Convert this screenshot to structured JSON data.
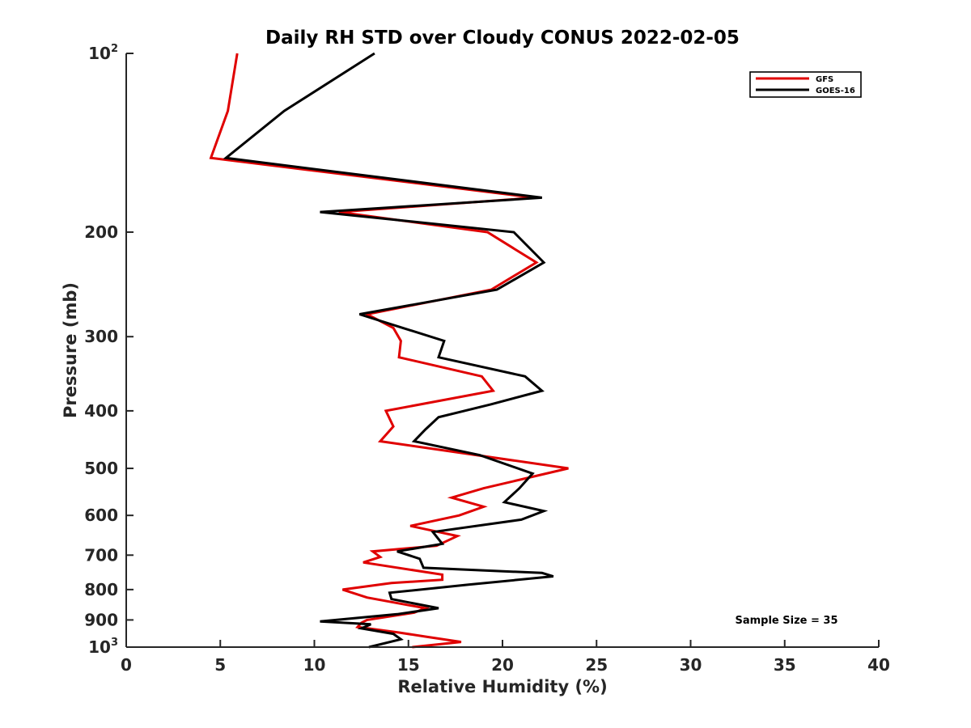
{
  "chart_data": {
    "type": "line",
    "title": "Daily RH STD over Cloudy CONUS 2022-02-05",
    "xlabel": "Relative Humidity (%)",
    "ylabel": "Pressure (mb)",
    "xlim": [
      0,
      40
    ],
    "ylim": [
      100,
      1000
    ],
    "yscale": "log",
    "y_reversed": true,
    "x_ticks": [
      "0",
      "5",
      "10",
      "15",
      "20",
      "25",
      "30",
      "35",
      "40"
    ],
    "y_ticks": [
      {
        "value": 100,
        "base": "10",
        "exp": "2"
      },
      {
        "value": 200,
        "label": "200"
      },
      {
        "value": 300,
        "label": "300"
      },
      {
        "value": 400,
        "label": "400"
      },
      {
        "value": 500,
        "label": "500"
      },
      {
        "value": 600,
        "label": "600"
      },
      {
        "value": 700,
        "label": "700"
      },
      {
        "value": 800,
        "label": "800"
      },
      {
        "value": 900,
        "label": "900"
      },
      {
        "value": 1000,
        "base": "10",
        "exp": "3"
      }
    ],
    "grid": false,
    "legend_position": "top-right",
    "annotation": "Sample Size = 35",
    "series": [
      {
        "name": "GFS",
        "color": "#e00000",
        "points": [
          {
            "x": 5.9,
            "y": 100
          },
          {
            "x": 5.4,
            "y": 125
          },
          {
            "x": 4.5,
            "y": 150
          },
          {
            "x": 21.7,
            "y": 175
          },
          {
            "x": 11.3,
            "y": 185
          },
          {
            "x": 19.2,
            "y": 200
          },
          {
            "x": 21.8,
            "y": 225
          },
          {
            "x": 19.4,
            "y": 250
          },
          {
            "x": 12.8,
            "y": 275
          },
          {
            "x": 14.2,
            "y": 290
          },
          {
            "x": 14.6,
            "y": 305
          },
          {
            "x": 14.5,
            "y": 325
          },
          {
            "x": 18.9,
            "y": 350
          },
          {
            "x": 19.5,
            "y": 370
          },
          {
            "x": 13.8,
            "y": 400
          },
          {
            "x": 14.2,
            "y": 425
          },
          {
            "x": 13.5,
            "y": 450
          },
          {
            "x": 23.5,
            "y": 500
          },
          {
            "x": 19.0,
            "y": 540
          },
          {
            "x": 17.3,
            "y": 560
          },
          {
            "x": 19.0,
            "y": 580
          },
          {
            "x": 17.7,
            "y": 600
          },
          {
            "x": 15.1,
            "y": 625
          },
          {
            "x": 17.6,
            "y": 650
          },
          {
            "x": 16.5,
            "y": 675
          },
          {
            "x": 13.1,
            "y": 690
          },
          {
            "x": 13.5,
            "y": 705
          },
          {
            "x": 12.6,
            "y": 720
          },
          {
            "x": 16.8,
            "y": 755
          },
          {
            "x": 16.8,
            "y": 770
          },
          {
            "x": 14.1,
            "y": 780
          },
          {
            "x": 11.5,
            "y": 800
          },
          {
            "x": 12.8,
            "y": 825
          },
          {
            "x": 15.9,
            "y": 860
          },
          {
            "x": 15.3,
            "y": 875
          },
          {
            "x": 12.8,
            "y": 900
          },
          {
            "x": 12.5,
            "y": 910
          },
          {
            "x": 12.3,
            "y": 925
          },
          {
            "x": 14.5,
            "y": 945
          },
          {
            "x": 15.9,
            "y": 960
          },
          {
            "x": 17.8,
            "y": 980
          },
          {
            "x": 15.2,
            "y": 1000
          }
        ]
      },
      {
        "name": "GOES-16",
        "color": "#000000",
        "points": [
          {
            "x": 13.2,
            "y": 100
          },
          {
            "x": 8.4,
            "y": 125
          },
          {
            "x": 5.3,
            "y": 150
          },
          {
            "x": 22.1,
            "y": 175
          },
          {
            "x": 10.3,
            "y": 185
          },
          {
            "x": 20.6,
            "y": 200
          },
          {
            "x": 22.2,
            "y": 225
          },
          {
            "x": 19.7,
            "y": 250
          },
          {
            "x": 12.4,
            "y": 275
          },
          {
            "x": 14.7,
            "y": 290
          },
          {
            "x": 16.9,
            "y": 305
          },
          {
            "x": 16.6,
            "y": 325
          },
          {
            "x": 21.2,
            "y": 350
          },
          {
            "x": 22.1,
            "y": 370
          },
          {
            "x": 19.4,
            "y": 390
          },
          {
            "x": 16.6,
            "y": 410
          },
          {
            "x": 15.9,
            "y": 430
          },
          {
            "x": 15.3,
            "y": 450
          },
          {
            "x": 18.8,
            "y": 475
          },
          {
            "x": 21.6,
            "y": 510
          },
          {
            "x": 20.9,
            "y": 540
          },
          {
            "x": 20.1,
            "y": 570
          },
          {
            "x": 22.2,
            "y": 590
          },
          {
            "x": 21.0,
            "y": 610
          },
          {
            "x": 16.3,
            "y": 640
          },
          {
            "x": 16.8,
            "y": 670
          },
          {
            "x": 14.4,
            "y": 690
          },
          {
            "x": 15.6,
            "y": 710
          },
          {
            "x": 15.8,
            "y": 735
          },
          {
            "x": 22.1,
            "y": 750
          },
          {
            "x": 22.7,
            "y": 760
          },
          {
            "x": 18.2,
            "y": 785
          },
          {
            "x": 14.0,
            "y": 810
          },
          {
            "x": 14.1,
            "y": 830
          },
          {
            "x": 16.6,
            "y": 860
          },
          {
            "x": 14.4,
            "y": 880
          },
          {
            "x": 10.3,
            "y": 905
          },
          {
            "x": 13.0,
            "y": 915
          },
          {
            "x": 12.5,
            "y": 930
          },
          {
            "x": 14.2,
            "y": 950
          },
          {
            "x": 14.6,
            "y": 970
          },
          {
            "x": 12.9,
            "y": 1000
          }
        ]
      }
    ]
  }
}
